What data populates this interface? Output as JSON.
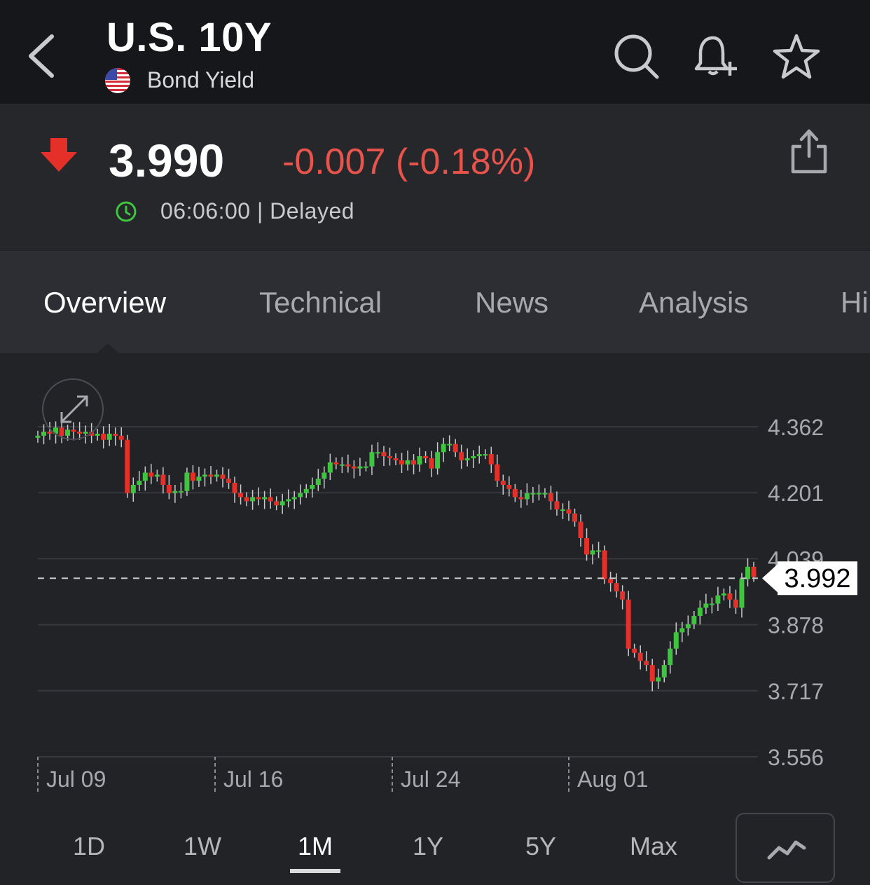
{
  "header": {
    "title": "U.S. 10Y",
    "subtitle": "Bond Yield"
  },
  "quote": {
    "price": "3.990",
    "change": "-0.007 (-0.18%)",
    "time": "06:06:00 | Delayed",
    "change_color": "#e8544c"
  },
  "tabs": [
    {
      "label": "Overview",
      "active": true
    },
    {
      "label": "Technical",
      "active": false
    },
    {
      "label": "News",
      "active": false
    },
    {
      "label": "Analysis",
      "active": false
    },
    {
      "label": "Hi",
      "active": false
    }
  ],
  "periods": [
    {
      "label": "1D",
      "active": false
    },
    {
      "label": "1W",
      "active": false
    },
    {
      "label": "1M",
      "active": true
    },
    {
      "label": "1Y",
      "active": false
    },
    {
      "label": "5Y",
      "active": false
    },
    {
      "label": "Max",
      "active": false
    }
  ],
  "chart_data": {
    "type": "candlestick",
    "y_ticks": [
      "4.362",
      "4.201",
      "4.039",
      "3.878",
      "3.717",
      "3.556"
    ],
    "ylim": [
      3.556,
      4.362
    ],
    "x_ticks": [
      "Jul 09",
      "Jul 16",
      "Jul 24",
      "Aug 01"
    ],
    "current_value": "3.992",
    "up_color": "#3ec43e",
    "down_color": "#e5302a",
    "grid": true,
    "candles": [
      4.34,
      4.35,
      4.345,
      4.36,
      4.34,
      4.355,
      4.35,
      4.345,
      4.35,
      4.34,
      4.345,
      4.33,
      4.345,
      4.34,
      4.33,
      4.2,
      4.22,
      4.23,
      4.25,
      4.24,
      4.245,
      4.22,
      4.2,
      4.205,
      4.205,
      4.25,
      4.23,
      4.24,
      4.245,
      4.24,
      4.245,
      4.235,
      4.225,
      4.2,
      4.19,
      4.18,
      4.19,
      4.185,
      4.19,
      4.18,
      4.17,
      4.18,
      4.185,
      4.19,
      4.2,
      4.21,
      4.22,
      4.235,
      4.25,
      4.275,
      4.27,
      4.27,
      4.265,
      4.26,
      4.265,
      4.265,
      4.3,
      4.3,
      4.29,
      4.285,
      4.28,
      4.27,
      4.28,
      4.27,
      4.29,
      4.285,
      4.26,
      4.3,
      4.32,
      4.32,
      4.3,
      4.28,
      4.285,
      4.29,
      4.295,
      4.295,
      4.27,
      4.23,
      4.22,
      4.21,
      4.19,
      4.185,
      4.2,
      4.2,
      4.2,
      4.2,
      4.18,
      4.16,
      4.16,
      4.15,
      4.13,
      4.09,
      4.05,
      4.06,
      4.06,
      3.99,
      3.98,
      3.96,
      3.94,
      3.82,
      3.81,
      3.79,
      3.78,
      3.74,
      3.75,
      3.78,
      3.82,
      3.86,
      3.87,
      3.88,
      3.9,
      3.92,
      3.93,
      3.93,
      3.95,
      3.955,
      3.94,
      3.92,
      3.99,
      4.02,
      3.995
    ]
  }
}
